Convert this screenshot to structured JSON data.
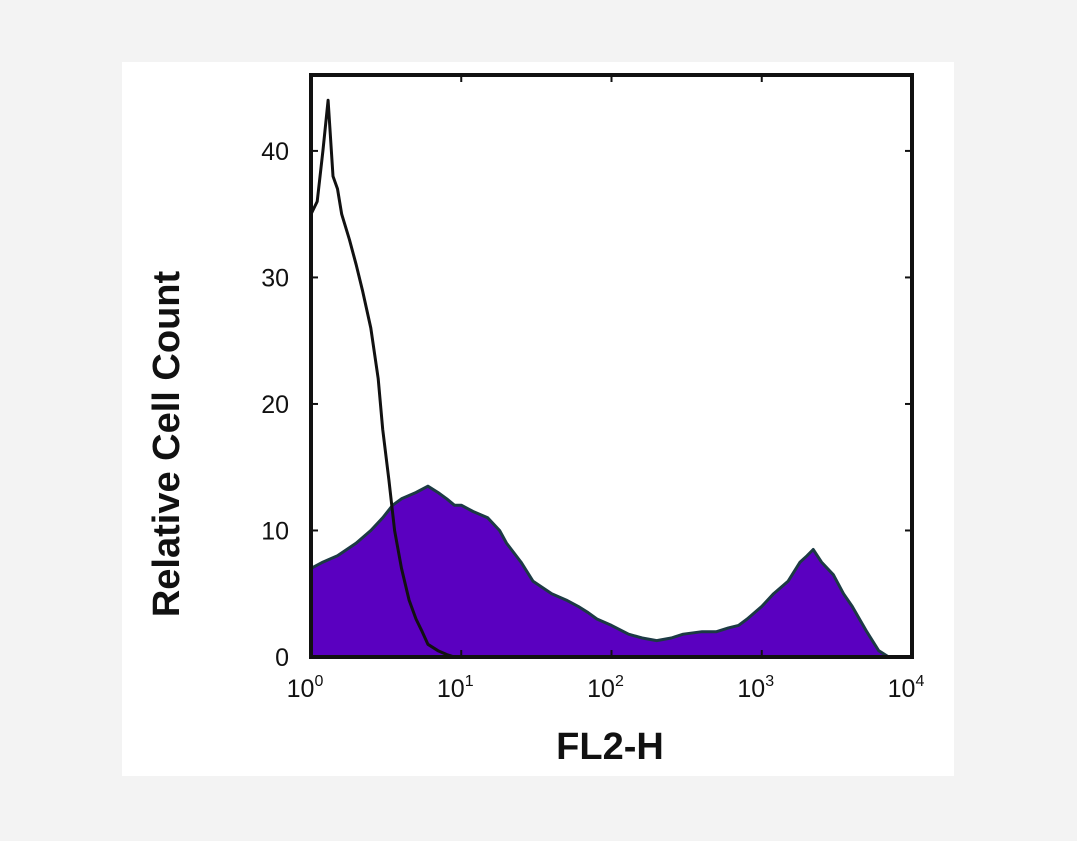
{
  "chart_data": {
    "type": "area",
    "xlabel": "FL2-H",
    "ylabel": "Relative Cell Count",
    "x_scale": "log",
    "xlim": [
      1,
      10000
    ],
    "ylim": [
      0,
      46
    ],
    "y_ticks": [
      {
        "value": 0,
        "label": "0"
      },
      {
        "value": 10,
        "label": "10"
      },
      {
        "value": 20,
        "label": "20"
      },
      {
        "value": 30,
        "label": "30"
      },
      {
        "value": 40,
        "label": "40"
      }
    ],
    "x_ticks": [
      {
        "value": 1,
        "base": "10",
        "exp": "0"
      },
      {
        "value": 10,
        "base": "10",
        "exp": "1"
      },
      {
        "value": 100,
        "base": "10",
        "exp": "2"
      },
      {
        "value": 1000,
        "base": "10",
        "exp": "3"
      },
      {
        "value": 10000,
        "base": "10",
        "exp": "4"
      }
    ],
    "grid": false,
    "legend": "none",
    "colors": {
      "filled": "#5a00c0",
      "filled_outline": "#1c3a44",
      "line": "#111111"
    },
    "series": [
      {
        "style": "filled",
        "x": [
          1,
          1.2,
          1.5,
          2,
          2.5,
          3,
          3.5,
          4,
          5,
          6,
          7,
          8,
          9,
          10,
          12,
          15,
          18,
          20,
          25,
          30,
          40,
          50,
          60,
          70,
          80,
          100,
          130,
          160,
          200,
          250,
          300,
          400,
          500,
          600,
          700,
          800,
          1000,
          1200,
          1500,
          1800,
          2000,
          2200,
          2500,
          3000,
          3500,
          4000,
          5000,
          6000,
          7000
        ],
        "y": [
          7,
          7.5,
          8,
          9,
          10,
          11,
          12,
          12.5,
          13,
          13.5,
          13,
          12.5,
          12,
          12,
          11.5,
          11,
          10,
          9,
          7.5,
          6,
          5,
          4.5,
          4,
          3.5,
          3,
          2.5,
          1.8,
          1.5,
          1.3,
          1.5,
          1.8,
          2,
          2,
          2.3,
          2.5,
          3,
          4,
          5,
          6,
          7.5,
          8,
          8.5,
          7.5,
          6.5,
          5,
          4,
          2,
          0.5,
          0
        ]
      },
      {
        "style": "line",
        "x": [
          1,
          1.1,
          1.2,
          1.3,
          1.4,
          1.5,
          1.6,
          1.8,
          2,
          2.2,
          2.5,
          2.8,
          3,
          3.3,
          3.6,
          4,
          4.5,
          5,
          5.5,
          6,
          7,
          8,
          9
        ],
        "y": [
          35,
          36,
          40,
          44,
          38,
          37,
          35,
          33,
          31,
          29,
          26,
          22,
          18,
          14,
          10,
          7,
          4.5,
          3,
          2,
          1,
          0.5,
          0.2,
          0
        ]
      }
    ]
  }
}
